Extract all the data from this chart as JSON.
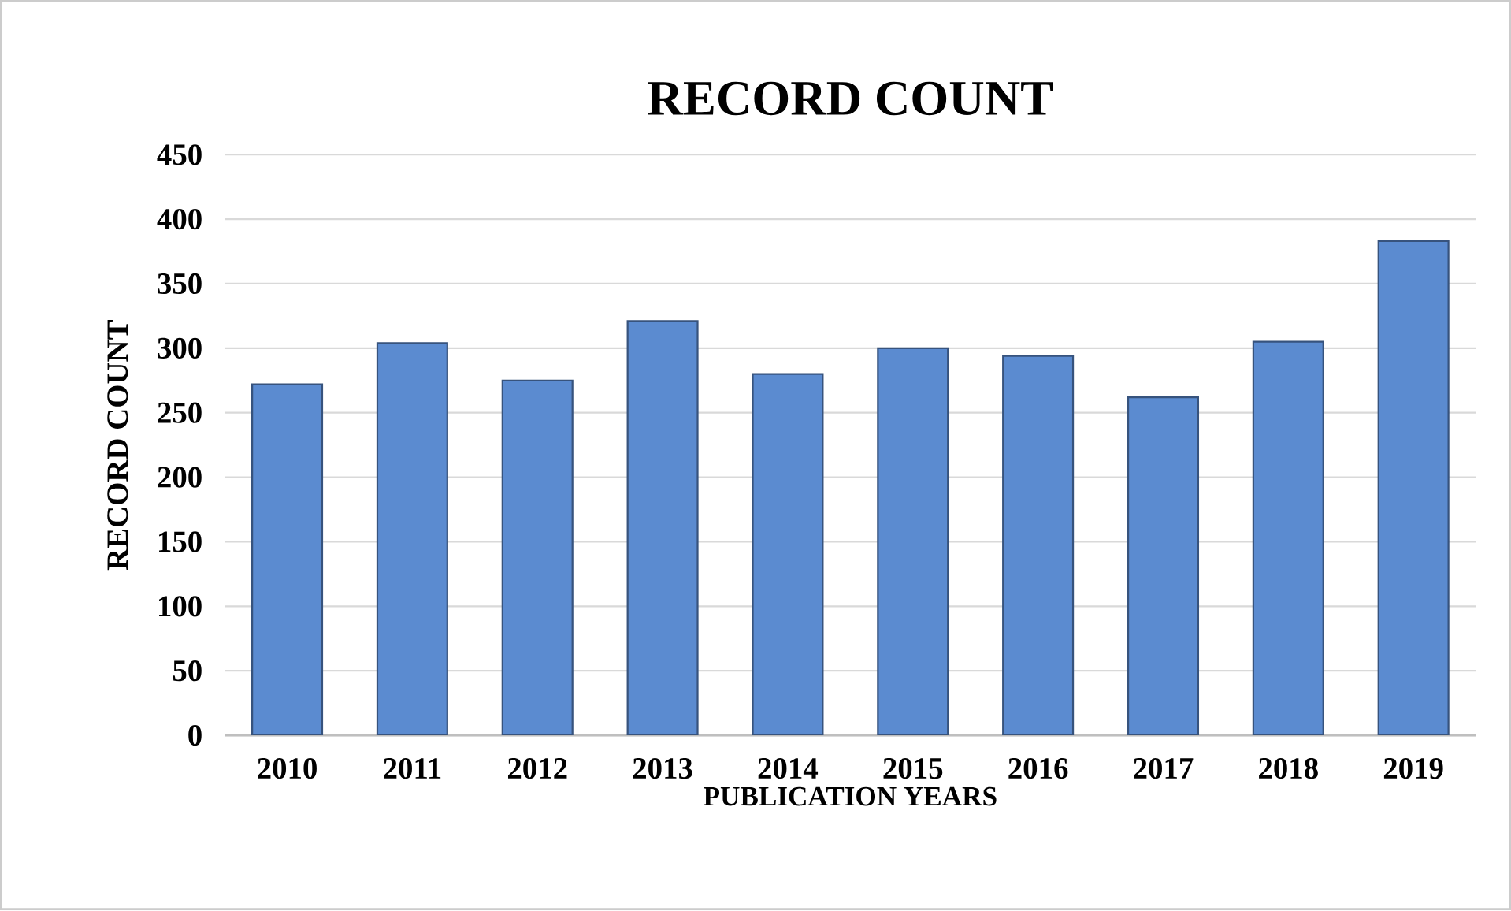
{
  "chart_data": {
    "type": "bar",
    "title": "RECORD COUNT",
    "xlabel": "PUBLICATION YEARS",
    "ylabel": "RECORD COUNT",
    "categories": [
      "2010",
      "2011",
      "2012",
      "2013",
      "2014",
      "2015",
      "2016",
      "2017",
      "2018",
      "2019"
    ],
    "values": [
      272,
      304,
      275,
      321,
      280,
      300,
      294,
      262,
      305,
      383
    ],
    "color": "#5b8bd0",
    "ylim": [
      0,
      450
    ],
    "yticks": [
      0,
      50,
      100,
      150,
      200,
      250,
      300,
      350,
      400,
      450
    ],
    "grid": "y"
  }
}
